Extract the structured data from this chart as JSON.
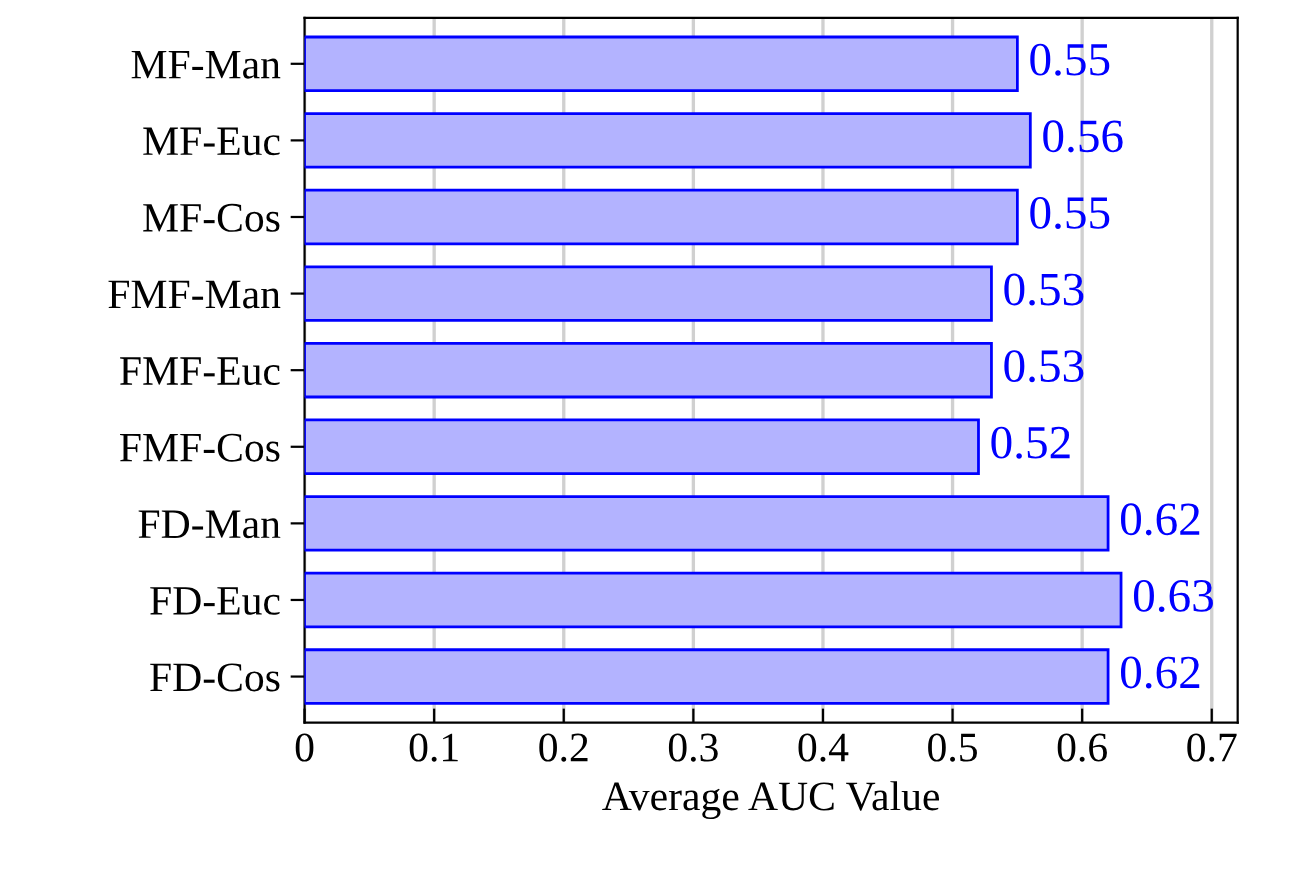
{
  "chart_data": {
    "type": "bar",
    "orientation": "horizontal",
    "xlabel": "Average AUC Value",
    "categories": [
      "MF-Man",
      "MF-Euc",
      "MF-Cos",
      "FMF-Man",
      "FMF-Euc",
      "FMF-Cos",
      "FD-Man",
      "FD-Euc",
      "FD-Cos"
    ],
    "series": [
      {
        "color": "#b3b3ff",
        "values": [
          0.55,
          0.56,
          0.55,
          0.53,
          0.53,
          0.52,
          0.62,
          0.63,
          0.62
        ]
      }
    ],
    "xlim": [
      0,
      0.72
    ],
    "xticks": [
      0,
      0.1,
      0.2,
      0.3,
      0.4,
      0.5,
      0.6,
      0.7
    ],
    "grid": "x",
    "data_labels": true
  }
}
